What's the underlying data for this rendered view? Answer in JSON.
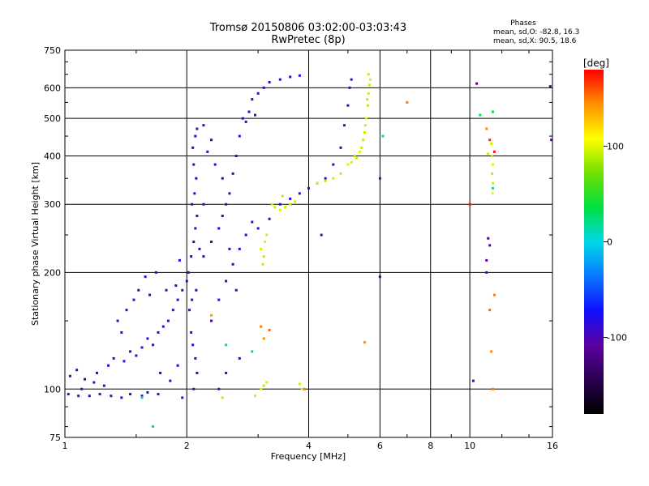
{
  "chart_data": {
    "type": "scatter",
    "title": "Tromsø 20150806 03:02:00-03:03:43",
    "subtitle": "RwPretec (8p)",
    "xlabel": "Frequency [MHz]",
    "ylabel": "Stationary phase Virtual Height [km]",
    "x_scale": "log",
    "y_scale": "log",
    "xlim": [
      1,
      16
    ],
    "ylim": [
      75,
      750
    ],
    "x_ticks": [
      1,
      2,
      4,
      6,
      8,
      10,
      16
    ],
    "x_tick_labels": [
      "1",
      "2",
      "4",
      "6",
      "8",
      "10",
      "16"
    ],
    "y_ticks": [
      75,
      100,
      200,
      300,
      400,
      500,
      600,
      750
    ],
    "y_tick_labels": [
      "75",
      "100",
      "200",
      "300",
      "400",
      "500",
      "600",
      "750"
    ],
    "grid": true,
    "phase_info": {
      "title": "Phases",
      "line1": "mean, sd,O: -82.8, 16.3",
      "line2": "mean, sd,X:  90.5, 18.6"
    },
    "colorbar": {
      "label": "[deg]",
      "range": [
        -180,
        180
      ],
      "ticks": [
        100,
        0,
        -100
      ],
      "tick_labels": [
        "100",
        "0",
        "-100"
      ]
    },
    "color_stops": [
      "#000000",
      "#2a0050",
      "#5a00a0",
      "#1010ff",
      "#0a78ff",
      "#00d8e8",
      "#00e040",
      "#70e000",
      "#ffff00",
      "#ff9000",
      "#ff0000"
    ],
    "series": [
      {
        "points": [
          [
            1.02,
            97,
            -95
          ],
          [
            1.08,
            96,
            -92
          ],
          [
            1.15,
            96,
            -88
          ],
          [
            1.22,
            97,
            -90
          ],
          [
            1.3,
            96,
            -85
          ],
          [
            1.38,
            95,
            -93
          ],
          [
            1.45,
            97,
            -87
          ],
          [
            1.55,
            96,
            -95
          ],
          [
            1.6,
            98,
            -82
          ],
          [
            1.7,
            97,
            -90
          ],
          [
            1.03,
            108,
            -85
          ],
          [
            1.07,
            112,
            -88
          ],
          [
            1.12,
            106,
            -95
          ],
          [
            1.2,
            110,
            -90
          ],
          [
            1.28,
            115,
            -85
          ],
          [
            1.32,
            120,
            -92
          ],
          [
            1.4,
            118,
            -80
          ],
          [
            1.45,
            125,
            -90
          ],
          [
            1.5,
            122,
            -95
          ],
          [
            1.55,
            128,
            -88
          ],
          [
            1.6,
            135,
            -92
          ],
          [
            1.65,
            130,
            -85
          ],
          [
            1.7,
            140,
            -90
          ],
          [
            1.75,
            145,
            -95
          ],
          [
            1.8,
            150,
            -88
          ],
          [
            1.85,
            160,
            -90
          ],
          [
            1.9,
            170,
            -92
          ],
          [
            1.95,
            180,
            -85
          ],
          [
            2.0,
            190,
            -90
          ],
          [
            1.48,
            170,
            -88
          ],
          [
            1.52,
            180,
            -92
          ],
          [
            1.42,
            160,
            -95
          ],
          [
            1.62,
            175,
            -85
          ],
          [
            1.58,
            195,
            -90
          ],
          [
            1.68,
            200,
            -88
          ],
          [
            1.35,
            150,
            -92
          ],
          [
            1.38,
            140,
            -85
          ],
          [
            1.78,
            180,
            -95
          ],
          [
            1.88,
            185,
            -88
          ],
          [
            1.92,
            215,
            -90
          ],
          [
            2.02,
            200,
            -92
          ],
          [
            2.05,
            220,
            -85
          ],
          [
            2.08,
            240,
            -90
          ],
          [
            2.1,
            260,
            -95
          ],
          [
            2.12,
            280,
            -88
          ],
          [
            2.06,
            300,
            -90
          ],
          [
            2.09,
            320,
            -92
          ],
          [
            2.11,
            350,
            -85
          ],
          [
            2.08,
            380,
            -90
          ],
          [
            2.07,
            420,
            -95
          ],
          [
            2.1,
            450,
            -88
          ],
          [
            2.12,
            470,
            -90
          ],
          [
            2.05,
            140,
            -92
          ],
          [
            2.07,
            130,
            -85
          ],
          [
            2.1,
            120,
            -90
          ],
          [
            2.12,
            110,
            -95
          ],
          [
            2.08,
            100,
            -88
          ],
          [
            2.03,
            160,
            -90
          ],
          [
            2.06,
            170,
            -92
          ],
          [
            2.11,
            180,
            -85
          ],
          [
            2.2,
            220,
            -90
          ],
          [
            2.3,
            240,
            -95
          ],
          [
            2.4,
            260,
            -88
          ],
          [
            2.45,
            280,
            -90
          ],
          [
            2.5,
            300,
            -92
          ],
          [
            2.55,
            320,
            -85
          ],
          [
            2.6,
            360,
            -90
          ],
          [
            2.65,
            400,
            -95
          ],
          [
            2.7,
            450,
            -88
          ],
          [
            2.75,
            500,
            -90
          ],
          [
            2.8,
            490,
            -92
          ],
          [
            2.85,
            520,
            -85
          ],
          [
            2.9,
            560,
            -90
          ],
          [
            3.0,
            580,
            -95
          ],
          [
            3.1,
            600,
            -88
          ],
          [
            3.2,
            620,
            -90
          ],
          [
            3.4,
            630,
            -92
          ],
          [
            3.6,
            640,
            -85
          ],
          [
            3.8,
            645,
            -90
          ],
          [
            2.95,
            510,
            -95
          ],
          [
            2.3,
            150,
            -88
          ],
          [
            2.4,
            170,
            -90
          ],
          [
            2.5,
            190,
            -92
          ],
          [
            2.6,
            210,
            -85
          ],
          [
            2.7,
            230,
            -90
          ],
          [
            2.8,
            250,
            -95
          ],
          [
            2.9,
            270,
            -88
          ],
          [
            3.0,
            260,
            -90
          ],
          [
            3.2,
            275,
            -92
          ],
          [
            3.4,
            300,
            -85
          ],
          [
            3.6,
            310,
            -90
          ],
          [
            3.8,
            320,
            -95
          ],
          [
            4.0,
            330,
            -88
          ],
          [
            4.2,
            340,
            -90
          ],
          [
            4.4,
            350,
            -92
          ],
          [
            4.6,
            380,
            -85
          ],
          [
            4.8,
            420,
            -90
          ],
          [
            4.9,
            480,
            -95
          ],
          [
            5.0,
            540,
            -88
          ],
          [
            5.05,
            600,
            -90
          ],
          [
            5.1,
            630,
            -92
          ],
          [
            2.2,
            480,
            -85
          ],
          [
            2.3,
            440,
            -90
          ],
          [
            2.25,
            410,
            -95
          ],
          [
            2.35,
            380,
            -88
          ],
          [
            2.4,
            100,
            -90
          ],
          [
            2.5,
            110,
            -92
          ],
          [
            2.7,
            120,
            -85
          ],
          [
            1.95,
            95,
            -90
          ],
          [
            2.15,
            230,
            -95
          ],
          [
            2.2,
            300,
            -88
          ],
          [
            2.45,
            350,
            -90
          ],
          [
            2.55,
            230,
            -92
          ],
          [
            2.65,
            180,
            -85
          ],
          [
            1.72,
            110,
            -90
          ],
          [
            1.82,
            105,
            -95
          ],
          [
            1.9,
            115,
            -88
          ],
          [
            1.25,
            102,
            -90
          ],
          [
            1.18,
            104,
            -92
          ],
          [
            1.1,
            100,
            -85
          ]
        ]
      },
      {
        "points": [
          [
            3.05,
            230,
            95
          ],
          [
            3.1,
            220,
            92
          ],
          [
            3.12,
            240,
            98
          ],
          [
            3.08,
            210,
            90
          ],
          [
            3.15,
            250,
            95
          ],
          [
            3.3,
            295,
            92
          ],
          [
            3.4,
            290,
            98
          ],
          [
            3.5,
            295,
            90
          ],
          [
            3.6,
            300,
            95
          ],
          [
            3.7,
            305,
            92
          ],
          [
            4.2,
            340,
            98
          ],
          [
            4.4,
            345,
            90
          ],
          [
            4.6,
            350,
            95
          ],
          [
            4.8,
            360,
            92
          ],
          [
            5.0,
            380,
            98
          ],
          [
            5.2,
            400,
            90
          ],
          [
            5.4,
            420,
            95
          ],
          [
            5.5,
            460,
            92
          ],
          [
            5.55,
            500,
            98
          ],
          [
            5.6,
            540,
            90
          ],
          [
            5.62,
            580,
            95
          ],
          [
            5.65,
            610,
            92
          ],
          [
            5.68,
            630,
            98
          ],
          [
            5.58,
            560,
            90
          ],
          [
            5.52,
            480,
            95
          ],
          [
            5.45,
            440,
            92
          ],
          [
            5.35,
            410,
            98
          ],
          [
            5.25,
            395,
            90
          ],
          [
            5.1,
            385,
            95
          ],
          [
            5.62,
            650,
            92
          ],
          [
            3.05,
            100,
            98
          ],
          [
            3.1,
            102,
            90
          ],
          [
            3.15,
            104,
            95
          ],
          [
            3.8,
            103,
            92
          ],
          [
            3.85,
            100,
            98
          ],
          [
            2.45,
            95,
            90
          ],
          [
            2.95,
            96,
            95
          ],
          [
            11.3,
            430,
            95
          ],
          [
            11.35,
            400,
            90
          ],
          [
            11.4,
            380,
            98
          ],
          [
            11.35,
            360,
            92
          ],
          [
            11.4,
            340,
            95
          ],
          [
            11.38,
            320,
            98
          ],
          [
            11.1,
            405,
            92
          ],
          [
            3.45,
            315,
            90
          ],
          [
            3.25,
            300,
            95
          ]
        ]
      },
      {
        "points": [
          [
            2.3,
            155,
            140
          ],
          [
            3.05,
            145,
            150
          ],
          [
            3.1,
            135,
            145
          ],
          [
            3.2,
            142,
            155
          ],
          [
            3.9,
            100,
            150
          ],
          [
            5.5,
            132,
            145
          ],
          [
            7.0,
            550,
            150
          ],
          [
            11.0,
            470,
            145
          ],
          [
            11.2,
            160,
            155
          ],
          [
            11.5,
            175,
            150
          ],
          [
            11.3,
            125,
            145
          ],
          [
            11.4,
            100,
            150
          ],
          [
            11.5,
            410,
            175
          ],
          [
            11.2,
            440,
            170
          ],
          [
            10.0,
            300,
            175
          ]
        ]
      },
      {
        "points": [
          [
            2.5,
            130,
            20
          ],
          [
            2.9,
            125,
            30
          ],
          [
            1.65,
            80,
            40
          ],
          [
            6.1,
            450,
            20
          ],
          [
            10.6,
            510,
            30
          ],
          [
            11.4,
            520,
            40
          ],
          [
            11.4,
            330,
            20
          ],
          [
            1.55,
            95,
            10
          ]
        ]
      },
      {
        "points": [
          [
            10.4,
            615,
            -105
          ],
          [
            15.8,
            605,
            -105
          ],
          [
            4.3,
            250,
            -110
          ],
          [
            6.0,
            195,
            -115
          ],
          [
            6.0,
            350,
            -105
          ],
          [
            11.2,
            235,
            -105
          ],
          [
            11.0,
            215,
            -110
          ],
          [
            10.2,
            105,
            -105
          ],
          [
            11.0,
            200,
            -115
          ],
          [
            11.1,
            245,
            -105
          ],
          [
            15.9,
            440,
            -110
          ]
        ]
      }
    ]
  }
}
